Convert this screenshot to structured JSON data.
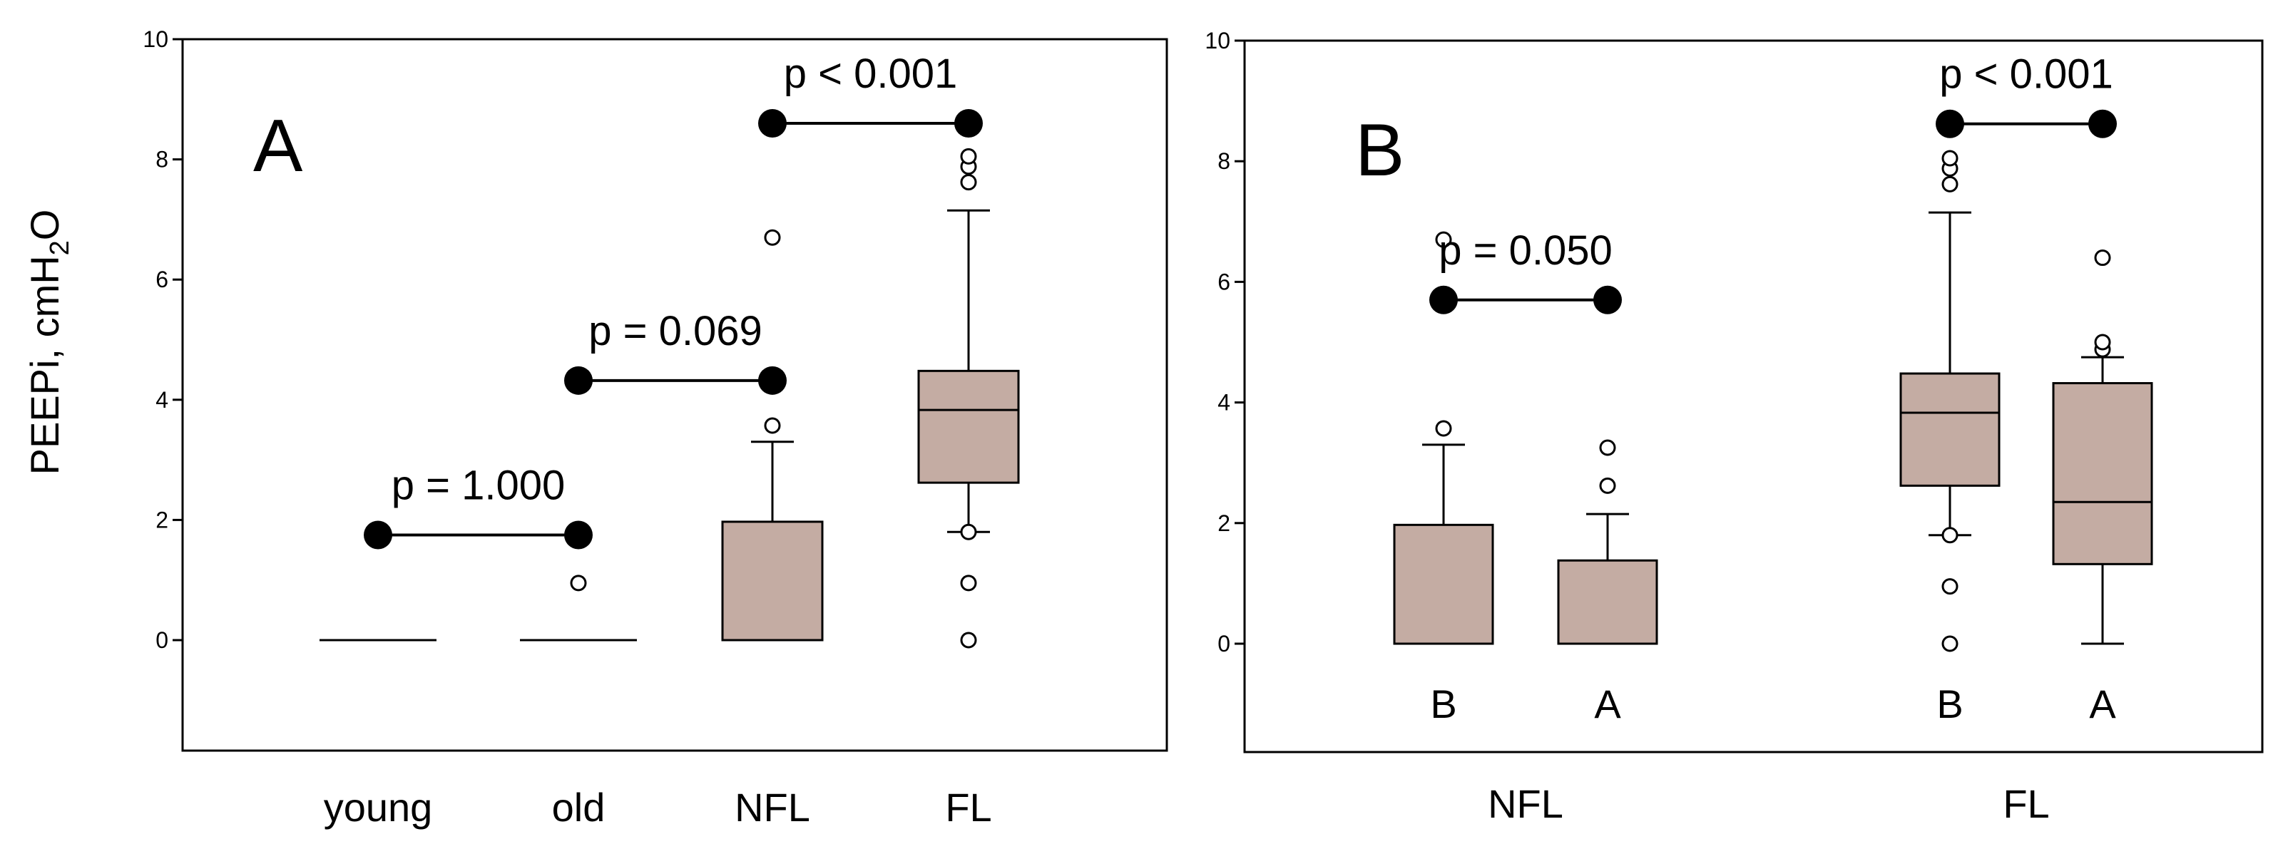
{
  "chart_data": {
    "type": "box",
    "ylabel_main": "PEEPi, cmH",
    "ylabel_sub": "2",
    "ylabel_end": "O",
    "ylim": [
      -1.8,
      10
    ],
    "yticks": [
      0,
      2,
      4,
      6,
      8,
      10
    ],
    "panels": [
      {
        "id": "A",
        "label": "A",
        "categories": [
          "young",
          "old",
          "NFL",
          "FL"
        ],
        "boxes": [
          {
            "name": "young",
            "q1": 0,
            "median": 0,
            "q3": 0,
            "whisker_low": null,
            "whisker_high": null,
            "outliers": []
          },
          {
            "name": "old",
            "q1": 0,
            "median": 0,
            "q3": 0,
            "whisker_low": null,
            "whisker_high": null,
            "outliers": [
              0.95
            ]
          },
          {
            "name": "NFL",
            "q1": 0,
            "median": 0,
            "q3": 1.97,
            "whisker_low": null,
            "whisker_high": 3.3,
            "outliers": [
              3.57,
              6.7
            ]
          },
          {
            "name": "FL",
            "q1": 2.62,
            "median": 3.83,
            "q3": 4.48,
            "whisker_low": 1.8,
            "whisker_high": 7.15,
            "outliers": [
              0,
              0.95,
              1.8,
              7.62,
              7.88,
              8.05
            ]
          }
        ],
        "brackets": [
          {
            "from": 0,
            "to": 1,
            "y": 1.75,
            "text": "p = 1.000"
          },
          {
            "from": 1,
            "to": 2,
            "y": 4.32,
            "text": "p = 0.069"
          },
          {
            "from": 2,
            "to": 3,
            "y": 8.6,
            "text": "p < 0.001"
          }
        ]
      },
      {
        "id": "B",
        "label": "B",
        "groups": [
          "NFL",
          "FL"
        ],
        "subcategories": [
          "B",
          "A",
          "B",
          "A"
        ],
        "boxes": [
          {
            "name": "NFL B",
            "q1": 0,
            "median": 0,
            "q3": 1.97,
            "whisker_low": null,
            "whisker_high": 3.3,
            "outliers": [
              3.57,
              6.7
            ]
          },
          {
            "name": "NFL A",
            "q1": 0,
            "median": 0,
            "q3": 1.38,
            "whisker_low": null,
            "whisker_high": 2.15,
            "outliers": [
              2.62,
              3.25
            ]
          },
          {
            "name": "FL B",
            "q1": 2.62,
            "median": 3.83,
            "q3": 4.48,
            "whisker_low": 1.8,
            "whisker_high": 7.15,
            "outliers": [
              0,
              0.95,
              1.8,
              7.62,
              7.88,
              8.05
            ]
          },
          {
            "name": "FL A",
            "q1": 1.32,
            "median": 2.35,
            "q3": 4.32,
            "whisker_low": 0,
            "whisker_high": 4.75,
            "outliers": [
              4.88,
              5.0,
              6.4
            ]
          }
        ],
        "brackets": [
          {
            "from": 0,
            "to": 1,
            "y": 5.7,
            "text": "p = 0.050"
          },
          {
            "from": 2,
            "to": 3,
            "y": 8.62,
            "text": "p < 0.001"
          }
        ]
      }
    ]
  }
}
